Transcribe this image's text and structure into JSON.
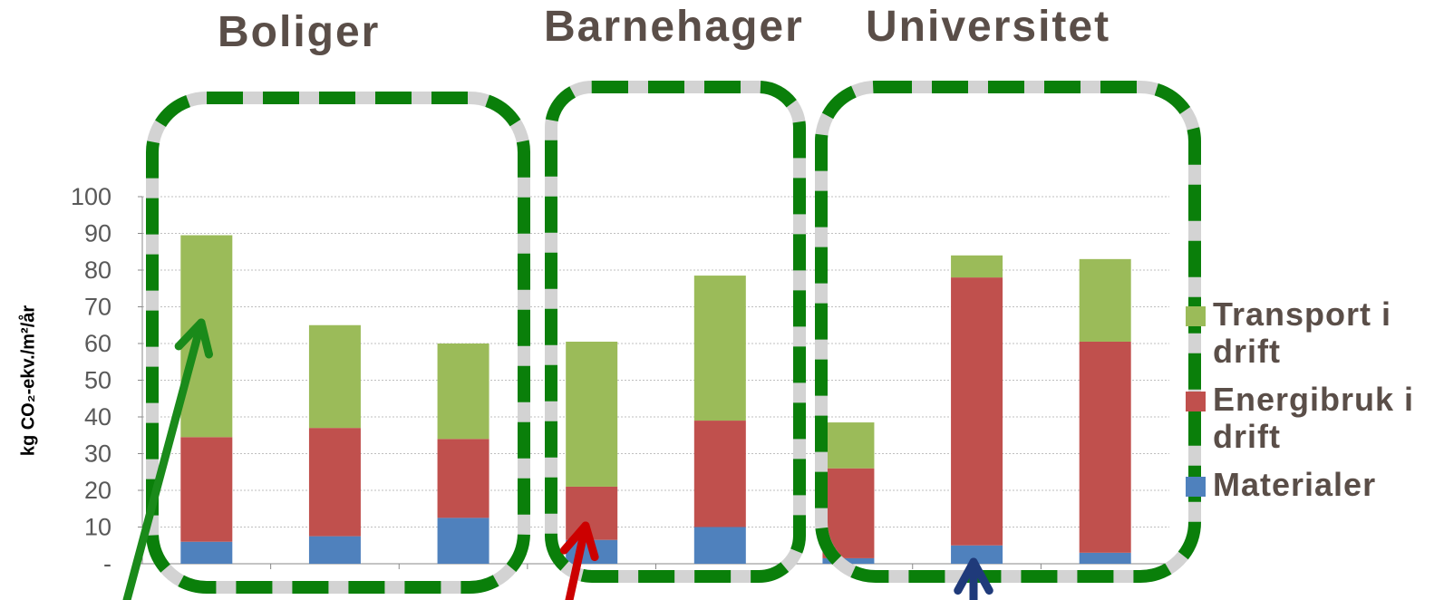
{
  "group_titles": {
    "boliger": "Boliger",
    "barnehager": "Barnehager",
    "universitet": "Universitet"
  },
  "colors": {
    "materialer": "#4f81bd",
    "energibruk": "#c0504d",
    "transport": "#9bbb59",
    "frame_green": "#0a7f0a",
    "frame_gray": "#d3d3d3",
    "arrow_green": "#1a8a1a",
    "arrow_red": "#cc0000",
    "arrow_blue": "#1f3a7a",
    "text": "#5a4e48"
  },
  "legend": [
    {
      "label": "Transport i drift",
      "color_key": "transport"
    },
    {
      "label": "Energibruk i drift",
      "color_key": "energibruk"
    },
    {
      "label": "Materialer",
      "color_key": "materialer"
    }
  ],
  "chart_data": {
    "type": "bar",
    "stacked": true,
    "ylabel": "kg CO₂-ekv./m²/år",
    "ylim": [
      0,
      100
    ],
    "yticks": [
      "-",
      "10",
      "20",
      "30",
      "40",
      "50",
      "60",
      "70",
      "80",
      "90",
      "100"
    ],
    "grid": true,
    "legend_position": "right",
    "categories": [
      "",
      "",
      "",
      "",
      "",
      "",
      "",
      ""
    ],
    "series": [
      {
        "name": "Materialer",
        "values": [
          6,
          7.5,
          12.5,
          6.5,
          10,
          1.5,
          5,
          3
        ]
      },
      {
        "name": "Energibruk i drift",
        "values": [
          28.5,
          29.5,
          21.5,
          14.5,
          29,
          24.5,
          73,
          57.5
        ]
      },
      {
        "name": "Transport i drift",
        "values": [
          55,
          28,
          26,
          39.5,
          39.5,
          12.5,
          6,
          22.5
        ]
      }
    ]
  }
}
